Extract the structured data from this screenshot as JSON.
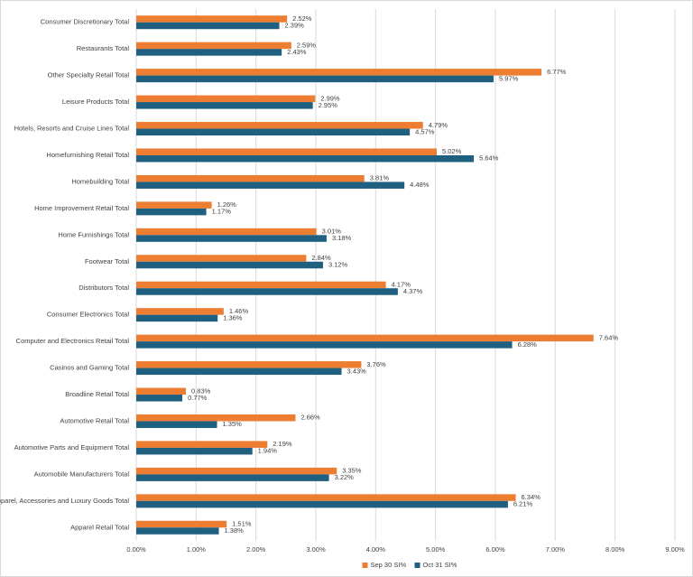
{
  "chart_data": {
    "type": "hbar",
    "categories": [
      "Consumer Discretionary Total",
      "Restaurants Total",
      "Other Specialty Retail Total",
      "Leisure Products Total",
      "Hotels, Resorts and Cruise Lines Total",
      "Homefurnishing Retail Total",
      "Homebuilding Total",
      "Home Improvement Retail Total",
      "Home Furnishings Total",
      "Footwear Total",
      "Distributors Total",
      "Consumer Electronics Total",
      "Computer and Electronics Retail Total",
      "Casinos and Gaming Total",
      "Broadline Retail Total",
      "Automotive Retail Total",
      "Automotive Parts and Equipment Total",
      "Automobile Manufacturers Total",
      "Apparel, Accessories and Luxury Goods Total",
      "Apparel Retail Total"
    ],
    "series": [
      {
        "name": "Sep 30 SI%",
        "color": "#ed7d31",
        "values": [
          2.52,
          2.59,
          6.77,
          2.99,
          4.79,
          5.02,
          3.81,
          1.26,
          3.01,
          2.84,
          4.17,
          1.46,
          7.64,
          3.76,
          0.83,
          2.66,
          2.19,
          3.35,
          6.34,
          1.51
        ],
        "value_labels": [
          "2.52%",
          "2.59%",
          "6.77%",
          "2.99%",
          "4.79%",
          "5.02%",
          "3.81%",
          "1.26%",
          "3.01%",
          "2.84%",
          "4.17%",
          "1.46%",
          "7.64%",
          "3.76%",
          "0.83%",
          "2.66%",
          "2.19%",
          "3.35%",
          "6.34%",
          "1.51%"
        ]
      },
      {
        "name": "Oct 31 SI%",
        "color": "#1f5f7f",
        "values": [
          2.39,
          2.43,
          5.97,
          2.95,
          4.57,
          5.64,
          4.48,
          1.17,
          3.18,
          3.12,
          4.37,
          1.36,
          6.28,
          3.43,
          0.77,
          1.35,
          1.94,
          3.22,
          6.21,
          1.38
        ],
        "value_labels": [
          "2.39%",
          "2.43%",
          "5.97%",
          "2.95%",
          "4.57%",
          "5.64%",
          "4.48%",
          "1.17%",
          "3.18%",
          "3.12%",
          "4.37%",
          "1.36%",
          "6.28%",
          "3.43%",
          "0.77%",
          "1.35%",
          "1.94%",
          "3.22%",
          "6.21%",
          "1.38%"
        ]
      }
    ],
    "xlim": [
      0,
      9
    ],
    "xticks": [
      {
        "value": 0,
        "label": "0.00%"
      },
      {
        "value": 1,
        "label": "1.00%"
      },
      {
        "value": 2,
        "label": "2.00%"
      },
      {
        "value": 3,
        "label": "3.00%"
      },
      {
        "value": 4,
        "label": "4.00%"
      },
      {
        "value": 5,
        "label": "5.00%"
      },
      {
        "value": 6,
        "label": "6.00%"
      },
      {
        "value": 7,
        "label": "7.00%"
      },
      {
        "value": 8,
        "label": "8.00%"
      },
      {
        "value": 9,
        "label": "9.00%"
      }
    ],
    "grid": true,
    "legend": "bottom"
  }
}
